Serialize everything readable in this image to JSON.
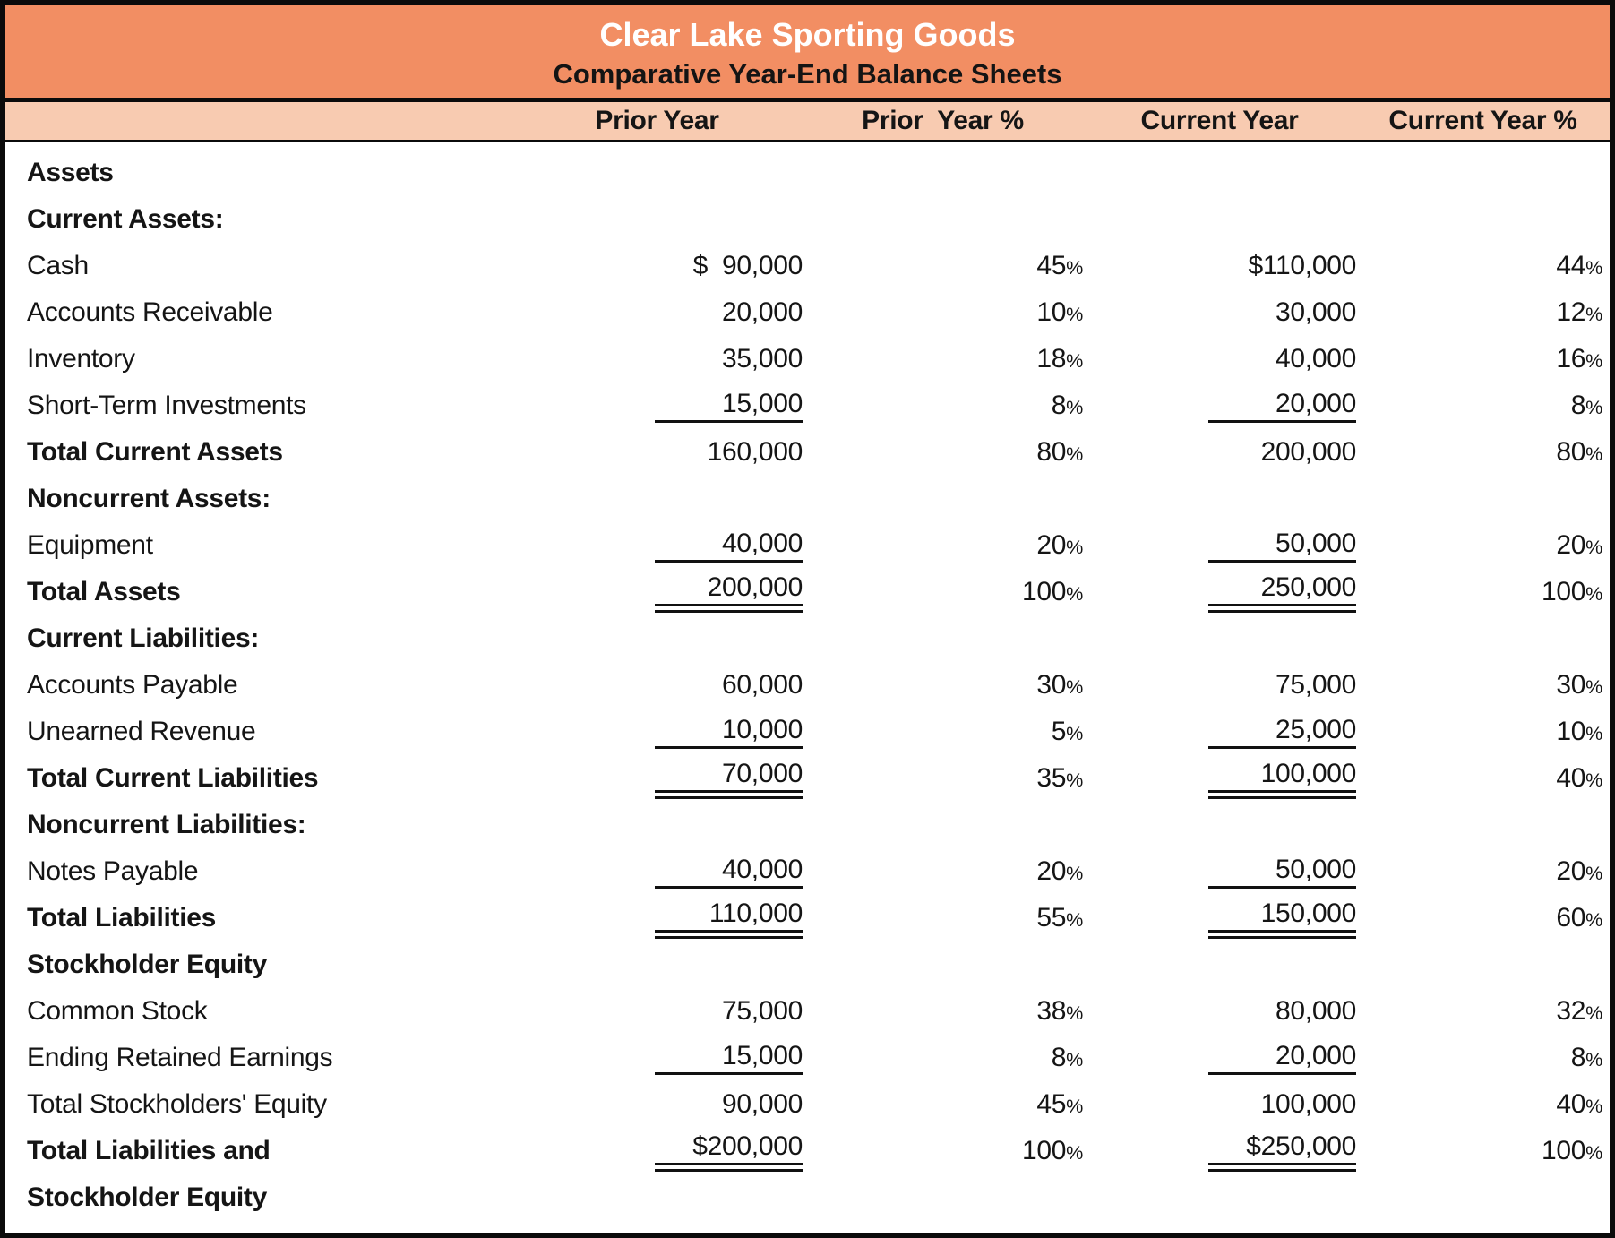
{
  "header": {
    "title": "Clear Lake Sporting Goods",
    "subtitle": "Comparative Year-End Balance Sheets"
  },
  "columns": [
    "Prior Year",
    "Prior  Year %",
    "Current Year",
    "Current Year %"
  ],
  "colors": {
    "header_band": "#F28E63",
    "column_header_band": "#F8CBB1",
    "border": "#0B0B0B",
    "title_text": "#FFFFFF",
    "body_text": "#151515"
  },
  "rows": [
    {
      "label": "Assets",
      "bold": true,
      "prior": "",
      "prior_pct": "",
      "current": "",
      "current_pct": "",
      "underline": "none"
    },
    {
      "label": "Current Assets:",
      "bold": true,
      "prior": "",
      "prior_pct": "",
      "current": "",
      "current_pct": "",
      "underline": "none"
    },
    {
      "label": "Cash",
      "bold": false,
      "prior": "$  90,000",
      "prior_pct": "45%",
      "current": "$110,000",
      "current_pct": "44%",
      "underline": "none"
    },
    {
      "label": "Accounts Receivable",
      "bold": false,
      "prior": "20,000",
      "prior_pct": "10%",
      "current": "30,000",
      "current_pct": "12%",
      "underline": "none"
    },
    {
      "label": "Inventory",
      "bold": false,
      "prior": "35,000",
      "prior_pct": "18%",
      "current": "40,000",
      "current_pct": "16%",
      "underline": "none"
    },
    {
      "label": "Short-Term Investments",
      "bold": false,
      "prior": "15,000",
      "prior_pct": "8%",
      "current": "20,000",
      "current_pct": "8%",
      "underline": "single"
    },
    {
      "label": "Total Current Assets",
      "bold": true,
      "prior": "160,000",
      "prior_pct": "80%",
      "current": "200,000",
      "current_pct": "80%",
      "underline": "none"
    },
    {
      "label": "Noncurrent Assets:",
      "bold": true,
      "prior": "",
      "prior_pct": "",
      "current": "",
      "current_pct": "",
      "underline": "none"
    },
    {
      "label": "Equipment",
      "bold": false,
      "prior": "40,000",
      "prior_pct": "20%",
      "current": "50,000",
      "current_pct": "20%",
      "underline": "single"
    },
    {
      "label": "Total Assets",
      "bold": true,
      "prior": "200,000",
      "prior_pct": "100%",
      "current": "250,000",
      "current_pct": "100%",
      "underline": "double"
    },
    {
      "label": "Current Liabilities:",
      "bold": true,
      "prior": "",
      "prior_pct": "",
      "current": "",
      "current_pct": "",
      "underline": "none"
    },
    {
      "label": "Accounts Payable",
      "bold": false,
      "prior": "60,000",
      "prior_pct": "30%",
      "current": "75,000",
      "current_pct": "30%",
      "underline": "none"
    },
    {
      "label": "Unearned Revenue",
      "bold": false,
      "prior": "10,000",
      "prior_pct": "5%",
      "current": "25,000",
      "current_pct": "10%",
      "underline": "single"
    },
    {
      "label": "Total Current Liabilities",
      "bold": true,
      "prior": "70,000",
      "prior_pct": "35%",
      "current": "100,000",
      "current_pct": "40%",
      "underline": "double"
    },
    {
      "label": "Noncurrent Liabilities:",
      "bold": true,
      "prior": "",
      "prior_pct": "",
      "current": "",
      "current_pct": "",
      "underline": "none"
    },
    {
      "label": "Notes Payable",
      "bold": false,
      "prior": "40,000",
      "prior_pct": "20%",
      "current": "50,000",
      "current_pct": "20%",
      "underline": "single"
    },
    {
      "label": "Total Liabilities",
      "bold": true,
      "prior": "110,000",
      "prior_pct": "55%",
      "current": "150,000",
      "current_pct": "60%",
      "underline": "double"
    },
    {
      "label": "Stockholder Equity",
      "bold": true,
      "prior": "",
      "prior_pct": "",
      "current": "",
      "current_pct": "",
      "underline": "none"
    },
    {
      "label": "Common Stock",
      "bold": false,
      "prior": "75,000",
      "prior_pct": "38%",
      "current": "80,000",
      "current_pct": "32%",
      "underline": "none"
    },
    {
      "label": "Ending Retained Earnings",
      "bold": false,
      "prior": "15,000",
      "prior_pct": "8%",
      "current": "20,000",
      "current_pct": "8%",
      "underline": "single"
    },
    {
      "label": "Total Stockholders' Equity",
      "bold": false,
      "prior": "90,000",
      "prior_pct": "45%",
      "current": "100,000",
      "current_pct": "40%",
      "underline": "none"
    },
    {
      "label": "Total Liabilities and",
      "bold": true,
      "prior": "$200,000",
      "prior_pct": "100%",
      "current": "$250,000",
      "current_pct": "100%",
      "underline": "double"
    },
    {
      "label": "Stockholder Equity",
      "bold": true,
      "prior": "",
      "prior_pct": "",
      "current": "",
      "current_pct": "",
      "underline": "none"
    }
  ]
}
